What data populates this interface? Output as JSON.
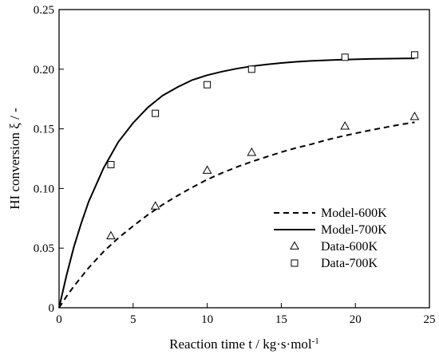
{
  "chart_data": {
    "type": "line",
    "xlabel": "Reaction time t / kg·s·mol",
    "xlabel_sup": "-1",
    "ylabel": "HI conversion ξ / -",
    "xlim": [
      0,
      25
    ],
    "ylim": [
      0,
      0.25
    ],
    "xticks": [
      0,
      5,
      10,
      15,
      20,
      25
    ],
    "yticks": [
      0,
      0.05,
      0.1,
      0.15,
      0.2,
      0.25
    ],
    "xtick_labels": [
      "0",
      "5",
      "10",
      "15",
      "20",
      "25"
    ],
    "ytick_labels": [
      "0",
      "0.05",
      "0.10",
      "0.15",
      "0.20",
      "0.25"
    ],
    "grid": false,
    "legend_position": "lower-right",
    "series": [
      {
        "name": "Model-600K",
        "kind": "line",
        "style": "dashed",
        "x": [
          0,
          0.5,
          1,
          2,
          3,
          4,
          5,
          6,
          7,
          8,
          9,
          10,
          11,
          12,
          13,
          14,
          15,
          16,
          17,
          18,
          19,
          20,
          21,
          22,
          23,
          24
        ],
        "y": [
          0,
          0.0095,
          0.018,
          0.0335,
          0.047,
          0.0585,
          0.0685,
          0.078,
          0.0865,
          0.094,
          0.101,
          0.1075,
          0.113,
          0.118,
          0.1225,
          0.1265,
          0.1305,
          0.134,
          0.137,
          0.1405,
          0.1435,
          0.1462,
          0.1488,
          0.1512,
          0.1535,
          0.1555
        ]
      },
      {
        "name": "Model-700K",
        "kind": "line",
        "style": "solid",
        "x": [
          0,
          0.5,
          1,
          1.5,
          2,
          3,
          4,
          5,
          6,
          7,
          8,
          9,
          10,
          11,
          12,
          13,
          14,
          15,
          16,
          17,
          18,
          19,
          20,
          21,
          22,
          23,
          24
        ],
        "y": [
          0,
          0.027,
          0.051,
          0.071,
          0.089,
          0.117,
          0.139,
          0.155,
          0.168,
          0.178,
          0.185,
          0.191,
          0.195,
          0.198,
          0.2005,
          0.2025,
          0.204,
          0.2052,
          0.2062,
          0.207,
          0.2075,
          0.208,
          0.2083,
          0.2086,
          0.2088,
          0.209,
          0.2091
        ]
      },
      {
        "name": "Data-600K",
        "kind": "scatter",
        "marker": "triangle",
        "x": [
          3.5,
          6.5,
          10,
          13,
          19.3,
          24
        ],
        "y": [
          0.06,
          0.085,
          0.115,
          0.13,
          0.152,
          0.16
        ]
      },
      {
        "name": "Data-700K",
        "kind": "scatter",
        "marker": "square",
        "x": [
          3.5,
          6.5,
          10,
          13,
          19.3,
          24
        ],
        "y": [
          0.12,
          0.163,
          0.187,
          0.2,
          0.21,
          0.212
        ]
      }
    ]
  }
}
